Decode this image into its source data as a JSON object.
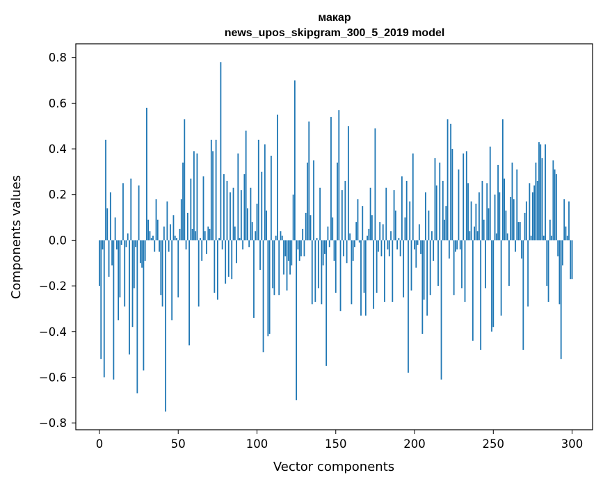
{
  "chart_data": {
    "type": "bar",
    "title": "макар",
    "subtitle": "news_upos_skipgram_300_5_2019 model",
    "xlabel": "Vector components",
    "ylabel": "Components values",
    "xlim": [
      -15,
      313
    ],
    "ylim": [
      -0.83,
      0.86
    ],
    "xticks": [
      0,
      50,
      100,
      150,
      200,
      250,
      300
    ],
    "xtick_labels": [
      "0",
      "50",
      "100",
      "150",
      "200",
      "250",
      "300"
    ],
    "yticks": [
      -0.8,
      -0.6,
      -0.4,
      -0.2,
      0.0,
      0.2,
      0.4,
      0.6,
      0.8
    ],
    "ytick_labels": [
      "−0.8",
      "−0.6",
      "−0.4",
      "−0.2",
      "0.0",
      "0.2",
      "0.4",
      "0.6",
      "0.8"
    ],
    "bar_color": "#1f77b4",
    "grid": false,
    "values": [
      -0.2,
      -0.52,
      -0.04,
      -0.6,
      0.44,
      0.14,
      -0.16,
      0.21,
      -0.11,
      -0.61,
      0.1,
      -0.04,
      -0.35,
      -0.25,
      -0.02,
      0.25,
      -0.29,
      -0.03,
      0.03,
      -0.5,
      0.27,
      -0.38,
      -0.21,
      -0.03,
      -0.67,
      0.24,
      -0.1,
      -0.12,
      -0.57,
      -0.09,
      0.58,
      0.09,
      0.04,
      0.01,
      0.02,
      -0.05,
      0.18,
      0.09,
      -0.05,
      -0.24,
      -0.29,
      0.06,
      -0.75,
      0.17,
      -0.05,
      0.07,
      -0.35,
      0.11,
      0.02,
      0.01,
      -0.25,
      0.05,
      0.18,
      0.34,
      0.53,
      -0.04,
      0.12,
      -0.46,
      0.27,
      0.05,
      0.39,
      0.04,
      0.38,
      -0.29,
      0.01,
      -0.09,
      0.28,
      0.04,
      -0.06,
      0.06,
      0.05,
      0.44,
      0.39,
      -0.23,
      0.44,
      -0.26,
      0.01,
      0.78,
      -0.04,
      0.29,
      -0.19,
      0.26,
      -0.16,
      0.21,
      -0.17,
      0.23,
      0.06,
      -0.1,
      0.38,
      0.01,
      0.22,
      -0.04,
      0.29,
      0.48,
      0.14,
      -0.03,
      0.23,
      0.08,
      -0.34,
      0.04,
      0.16,
      0.44,
      -0.13,
      0.3,
      -0.49,
      0.42,
      0.13,
      -0.42,
      -0.41,
      0.37,
      -0.21,
      -0.24,
      0.02,
      0.55,
      -0.24,
      0.04,
      0.02,
      -0.15,
      -0.07,
      -0.22,
      -0.09,
      -0.15,
      -0.11,
      0.2,
      0.7,
      -0.7,
      -0.04,
      -0.09,
      -0.07,
      0.05,
      -0.07,
      0.12,
      0.34,
      0.52,
      0.11,
      -0.28,
      0.35,
      -0.27,
      0.01,
      -0.21,
      0.23,
      -0.28,
      -0.11,
      -0.06,
      -0.55,
      0.06,
      -0.03,
      0.54,
      0.1,
      -0.09,
      -0.23,
      0.34,
      0.57,
      -0.31,
      0.22,
      -0.07,
      0.26,
      -0.1,
      0.5,
      0.03,
      -0.28,
      -0.09,
      -0.03,
      0.08,
      0.18,
      -0.01,
      -0.33,
      0.15,
      -0.23,
      -0.33,
      0.02,
      0.05,
      0.23,
      0.11,
      -0.3,
      0.49,
      -0.23,
      -0.05,
      0.08,
      -0.07,
      0.07,
      -0.27,
      0.23,
      -0.04,
      -0.07,
      0.04,
      -0.27,
      0.22,
      0.13,
      -0.04,
      0.01,
      -0.07,
      0.28,
      -0.25,
      0.1,
      0.26,
      -0.58,
      0.17,
      -0.22,
      0.38,
      -0.04,
      -0.12,
      -0.02,
      0.07,
      -0.06,
      -0.41,
      -0.26,
      0.21,
      -0.33,
      0.13,
      -0.24,
      0.04,
      -0.09,
      0.36,
      0.24,
      -0.2,
      0.34,
      -0.61,
      0.26,
      0.09,
      0.15,
      0.53,
      -0.08,
      0.51,
      0.4,
      -0.24,
      -0.05,
      -0.04,
      0.31,
      -0.04,
      -0.21,
      0.38,
      -0.27,
      0.39,
      0.25,
      0.04,
      0.17,
      -0.44,
      0.06,
      0.16,
      0.04,
      0.21,
      -0.48,
      0.26,
      0.09,
      -0.21,
      0.25,
      0.14,
      0.41,
      -0.4,
      -0.38,
      0.2,
      0.03,
      0.33,
      0.21,
      -0.33,
      0.53,
      0.27,
      0.13,
      0.03,
      -0.2,
      0.19,
      0.34,
      0.18,
      -0.05,
      0.31,
      0.08,
      0.08,
      -0.08,
      -0.48,
      0.12,
      0.17,
      -0.29,
      0.25,
      0.02,
      0.21,
      0.24,
      0.34,
      0.26,
      0.43,
      0.42,
      0.36,
      0.02,
      0.42,
      -0.2,
      -0.27,
      0.09,
      0.02,
      0.35,
      0.31,
      0.29,
      -0.07,
      -0.28,
      -0.52,
      -0.11,
      0.18,
      0.06,
      0.02,
      0.17,
      -0.17,
      -0.17
    ]
  }
}
